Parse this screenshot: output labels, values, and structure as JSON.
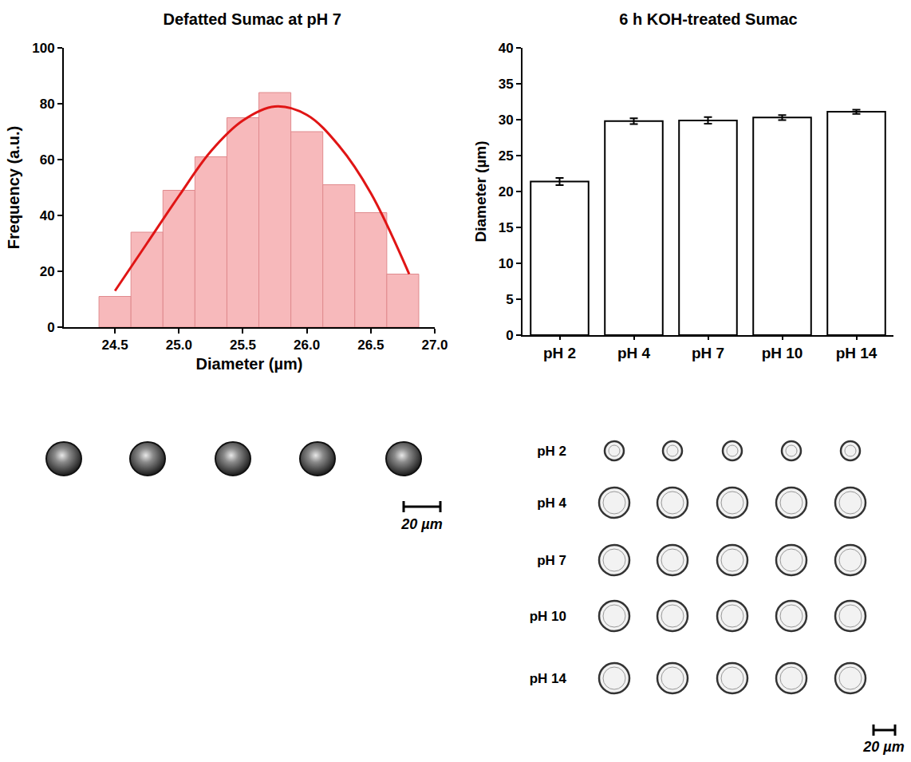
{
  "chart_data": [
    {
      "type": "histogram",
      "title": "Defatted Sumac at pH 7",
      "xlabel": "Diameter (µm)",
      "ylabel": "Frequency (a.u.)",
      "bins": [
        24.375,
        24.625,
        24.875,
        25.125,
        25.375,
        25.625,
        25.875,
        26.125,
        26.375,
        26.625,
        26.875
      ],
      "counts": [
        11,
        34,
        49,
        61,
        75,
        84,
        70,
        51,
        41,
        19
      ],
      "color": "#f7b9bb",
      "fit": {
        "x": [
          24.5,
          24.75,
          25.0,
          25.25,
          25.5,
          25.75,
          26.0,
          26.25,
          26.5,
          26.8
        ],
        "y": [
          13,
          30,
          47,
          63,
          74,
          79,
          76,
          65,
          48,
          19
        ],
        "color": "#e01515"
      },
      "xlim": [
        24.1,
        27.0
      ],
      "xticks": [
        {
          "value": 24.5,
          "label": "24.5"
        },
        {
          "value": 25,
          "label": "25.0"
        },
        {
          "value": 25.5,
          "label": "25.5"
        },
        {
          "value": 26,
          "label": "26.0"
        },
        {
          "value": 26.5,
          "label": "26.5"
        },
        {
          "value": 27,
          "label": "27.0"
        }
      ],
      "ylim": [
        0,
        100
      ],
      "yticks": [
        0,
        20,
        40,
        60,
        80,
        100
      ],
      "grid": false
    },
    {
      "type": "bar",
      "title": "6 h KOH-treated Sumac",
      "ylabel": "Diameter (µm)",
      "categories": [
        "pH 2",
        "pH 4",
        "pH 7",
        "pH 10",
        "pH 14"
      ],
      "values": [
        21.4,
        29.8,
        29.9,
        30.3,
        31.1
      ],
      "error": [
        0.5,
        0.4,
        0.45,
        0.35,
        0.3
      ],
      "color": "#ffffff",
      "ylim": [
        0,
        40
      ],
      "yticks": [
        0,
        5,
        10,
        15,
        20,
        25,
        30,
        35,
        40
      ],
      "grid": false
    }
  ],
  "micrographs": {
    "left": {
      "scale_bar": "20 µm"
    },
    "right": {
      "rows": [
        "pH 2",
        "pH 4",
        "pH 7",
        "pH 10",
        "pH 14"
      ],
      "scale_bar": "20 µm"
    }
  }
}
